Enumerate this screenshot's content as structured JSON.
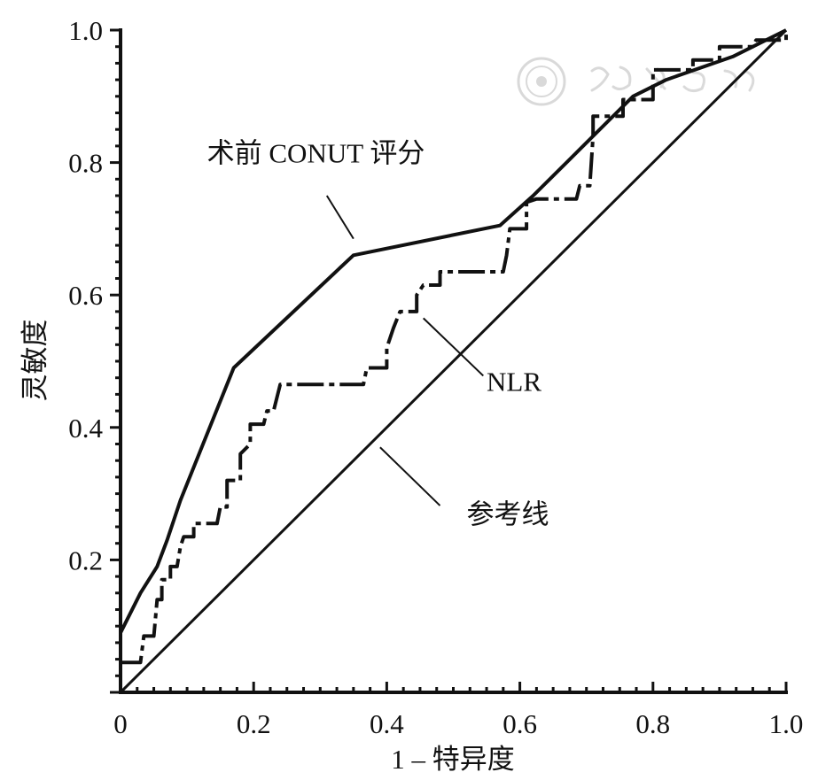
{
  "chart_data": {
    "type": "line",
    "title": "",
    "xlabel": "1 – 特异度",
    "ylabel": "灵敏度",
    "xlim": [
      0,
      1.0
    ],
    "ylim": [
      0,
      1.0
    ],
    "x_ticks": [
      "0",
      "0.2",
      "0.4",
      "0.6",
      "0.8",
      "1.0"
    ],
    "y_ticks": [
      "0.2",
      "0.4",
      "0.6",
      "0.8",
      "1.0"
    ],
    "x_tick_values": [
      0,
      0.2,
      0.4,
      0.6,
      0.8,
      1.0
    ],
    "y_tick_values": [
      0.2,
      0.4,
      0.6,
      0.8,
      1.0
    ],
    "grid": false,
    "series": [
      {
        "name": "术前 CONUT 评分",
        "style": "solid",
        "points": [
          [
            0,
            0.09
          ],
          [
            0.03,
            0.15
          ],
          [
            0.055,
            0.19
          ],
          [
            0.07,
            0.23
          ],
          [
            0.09,
            0.29
          ],
          [
            0.11,
            0.34
          ],
          [
            0.17,
            0.49
          ],
          [
            0.35,
            0.66
          ],
          [
            0.57,
            0.705
          ],
          [
            0.62,
            0.75
          ],
          [
            0.7,
            0.83
          ],
          [
            0.77,
            0.9
          ],
          [
            0.82,
            0.925
          ],
          [
            0.92,
            0.96
          ],
          [
            1.0,
            1.0
          ]
        ]
      },
      {
        "name": "NLR",
        "style": "dashed",
        "points": [
          [
            0,
            0.045
          ],
          [
            0.03,
            0.045
          ],
          [
            0.035,
            0.085
          ],
          [
            0.05,
            0.085
          ],
          [
            0.055,
            0.14
          ],
          [
            0.062,
            0.14
          ],
          [
            0.062,
            0.17
          ],
          [
            0.075,
            0.17
          ],
          [
            0.075,
            0.19
          ],
          [
            0.085,
            0.19
          ],
          [
            0.09,
            0.22
          ],
          [
            0.095,
            0.235
          ],
          [
            0.11,
            0.235
          ],
          [
            0.11,
            0.255
          ],
          [
            0.145,
            0.255
          ],
          [
            0.15,
            0.28
          ],
          [
            0.16,
            0.28
          ],
          [
            0.16,
            0.32
          ],
          [
            0.18,
            0.32
          ],
          [
            0.18,
            0.36
          ],
          [
            0.195,
            0.375
          ],
          [
            0.195,
            0.405
          ],
          [
            0.215,
            0.405
          ],
          [
            0.22,
            0.425
          ],
          [
            0.23,
            0.425
          ],
          [
            0.24,
            0.465
          ],
          [
            0.365,
            0.465
          ],
          [
            0.37,
            0.49
          ],
          [
            0.4,
            0.49
          ],
          [
            0.4,
            0.52
          ],
          [
            0.41,
            0.55
          ],
          [
            0.42,
            0.575
          ],
          [
            0.445,
            0.575
          ],
          [
            0.445,
            0.6
          ],
          [
            0.455,
            0.615
          ],
          [
            0.48,
            0.615
          ],
          [
            0.48,
            0.635
          ],
          [
            0.575,
            0.635
          ],
          [
            0.58,
            0.66
          ],
          [
            0.585,
            0.7
          ],
          [
            0.61,
            0.7
          ],
          [
            0.61,
            0.74
          ],
          [
            0.625,
            0.745
          ],
          [
            0.685,
            0.745
          ],
          [
            0.69,
            0.765
          ],
          [
            0.705,
            0.765
          ],
          [
            0.71,
            0.84
          ],
          [
            0.71,
            0.87
          ],
          [
            0.755,
            0.87
          ],
          [
            0.755,
            0.895
          ],
          [
            0.8,
            0.895
          ],
          [
            0.8,
            0.94
          ],
          [
            0.86,
            0.94
          ],
          [
            0.86,
            0.955
          ],
          [
            0.9,
            0.955
          ],
          [
            0.9,
            0.975
          ],
          [
            0.95,
            0.975
          ],
          [
            0.955,
            0.985
          ],
          [
            1.0,
            0.985
          ],
          [
            1.0,
            1.0
          ]
        ]
      },
      {
        "name": "参考线",
        "style": "solid",
        "points": [
          [
            0,
            0
          ],
          [
            1.0,
            1.0
          ]
        ]
      }
    ],
    "annotations": [
      {
        "text": "术前 CONUT 评分",
        "label_at": [
          0.13,
          0.8
        ],
        "pointer_from": [
          0.31,
          0.75
        ],
        "pointer_to": [
          0.35,
          0.685
        ]
      },
      {
        "text": "NLR",
        "label_at": [
          0.55,
          0.455
        ],
        "pointer_from": [
          0.545,
          0.478
        ],
        "pointer_to": [
          0.455,
          0.565
        ]
      },
      {
        "text": "参考线",
        "label_at": [
          0.52,
          0.255
        ],
        "pointer_from": [
          0.48,
          0.282
        ],
        "pointer_to": [
          0.39,
          0.37
        ]
      }
    ]
  }
}
